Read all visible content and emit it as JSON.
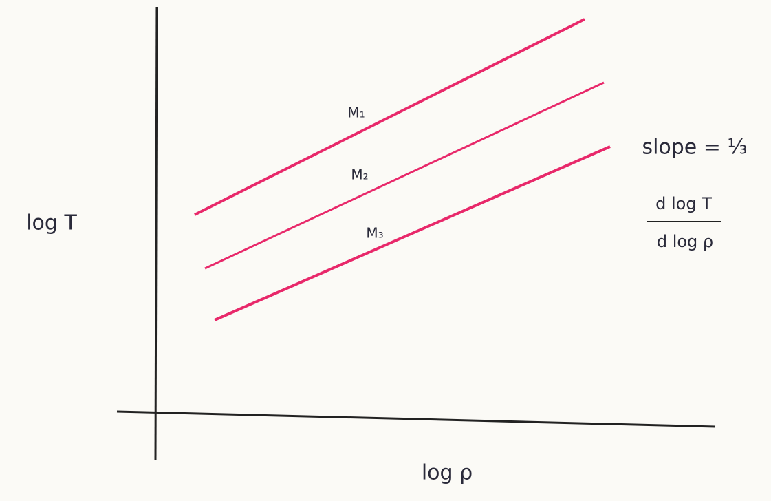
{
  "axes": {
    "y_label": "log T",
    "x_label": "log ρ"
  },
  "lines": [
    {
      "label": "M₁"
    },
    {
      "label": "M₂"
    },
    {
      "label": "M₃"
    }
  ],
  "annotation": {
    "slope": "slope = ⅓",
    "numerator": "d log T",
    "denominator": "d log ρ"
  }
}
